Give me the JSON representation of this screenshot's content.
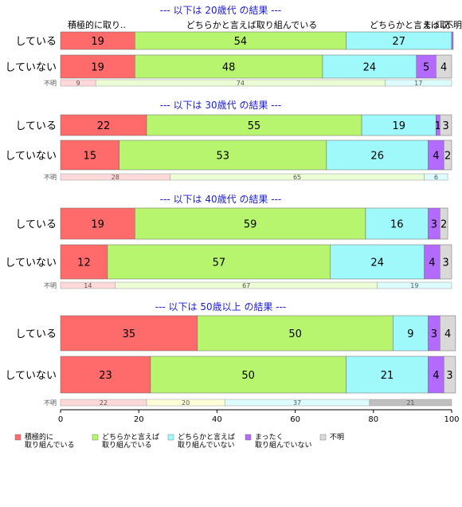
{
  "chart_data": {
    "type": "bar",
    "orientation": "horizontal-stacked-100",
    "xlim": [
      0,
      100
    ],
    "x_ticks": [
      "0",
      "20",
      "40",
      "60",
      "80",
      "100"
    ],
    "header_labels": [
      "積極的に取り..",
      "どちらかと言えば取り組んでいる",
      "どちらかと言えば取..",
      "まっ..",
      "不明"
    ],
    "legend": [
      {
        "label": "積極的に\n取り組んでいる",
        "color": "#ff6b6b"
      },
      {
        "label": "どちらかと言えば\n取り組んでいる",
        "color": "#b8f56e"
      },
      {
        "label": "どちらかと言えば\n取り組んでいない",
        "color": "#9ff9fb"
      },
      {
        "label": "まったく\n取り組んでいない",
        "color": "#b36bff"
      },
      {
        "label": "不明",
        "color": "#d9d9d9"
      }
    ],
    "panels": [
      {
        "title": "--- 以下は 20歳代 の結果 ---",
        "rows": [
          {
            "label": "している",
            "values": [
              19,
              54,
              27,
              0.4,
              0
            ]
          },
          {
            "label": "していない",
            "values": [
              19,
              48,
              24,
              5,
              4
            ]
          }
        ],
        "unknown": {
          "label": "不明",
          "values": [
            9,
            74,
            17
          ]
        }
      },
      {
        "title": "--- 以下は 30歳代 の結果 ---",
        "rows": [
          {
            "label": "している",
            "values": [
              22,
              55,
              19,
              1,
              3
            ]
          },
          {
            "label": "していない",
            "values": [
              15,
              53,
              26,
              4,
              2
            ]
          }
        ],
        "unknown": {
          "label": "不明",
          "values": [
            28,
            65,
            6
          ]
        }
      },
      {
        "title": "--- 以下は 40歳代 の結果 ---",
        "rows": [
          {
            "label": "している",
            "values": [
              19,
              59,
              16,
              3,
              2
            ]
          },
          {
            "label": "していない",
            "values": [
              12,
              57,
              24,
              4,
              3
            ]
          }
        ],
        "unknown": {
          "label": "不明",
          "values": [
            14,
            67,
            19
          ]
        }
      },
      {
        "title": "--- 以下は 50歳以上 の結果 ---",
        "rows": [
          {
            "label": "している",
            "values": [
              35,
              50,
              9,
              3,
              4
            ]
          },
          {
            "label": "していない",
            "values": [
              23,
              50,
              21,
              4,
              3
            ]
          }
        ],
        "unknown": {
          "label": "不明",
          "values": [
            22,
            20,
            37,
            21
          ]
        }
      }
    ]
  }
}
